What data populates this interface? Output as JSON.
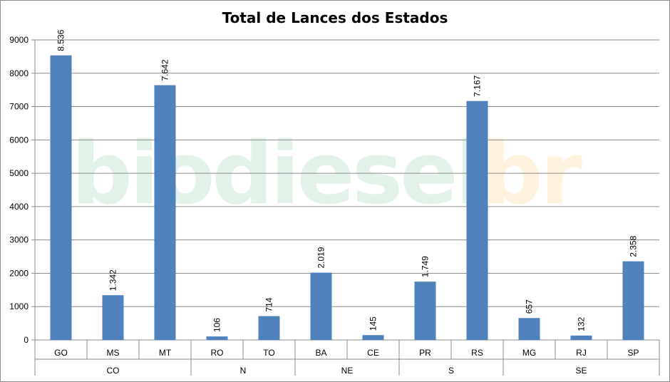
{
  "chart_data": {
    "type": "bar",
    "title": "Total de Lances dos Estados",
    "categories": [
      "GO",
      "MS",
      "MT",
      "RO",
      "TO",
      "BA",
      "CE",
      "PR",
      "RS",
      "MG",
      "RJ",
      "SP"
    ],
    "groups": [
      {
        "label": "CO",
        "members": [
          "GO",
          "MS",
          "MT"
        ]
      },
      {
        "label": "N",
        "members": [
          "RO",
          "TO"
        ]
      },
      {
        "label": "NE",
        "members": [
          "BA",
          "CE"
        ]
      },
      {
        "label": "S",
        "members": [
          "PR",
          "RS"
        ]
      },
      {
        "label": "SE",
        "members": [
          "MG",
          "RJ",
          "SP"
        ]
      }
    ],
    "values": [
      8536,
      1342,
      7642,
      106,
      714,
      2019,
      145,
      1749,
      7167,
      657,
      132,
      2358
    ],
    "value_labels": [
      "8.536",
      "1.342",
      "7.642",
      "106",
      "714",
      "2.019",
      "145",
      "1.749",
      "7.167",
      "657",
      "132",
      "2.358"
    ],
    "ylim": [
      0,
      9000
    ],
    "yticks": [
      0,
      1000,
      2000,
      3000,
      4000,
      5000,
      6000,
      7000,
      8000,
      9000
    ],
    "grid": true,
    "bar_color": "#4f81bd",
    "grid_color": "#8c8c8c"
  },
  "watermark": {
    "part1": "biodiesel",
    "part2": "br"
  }
}
